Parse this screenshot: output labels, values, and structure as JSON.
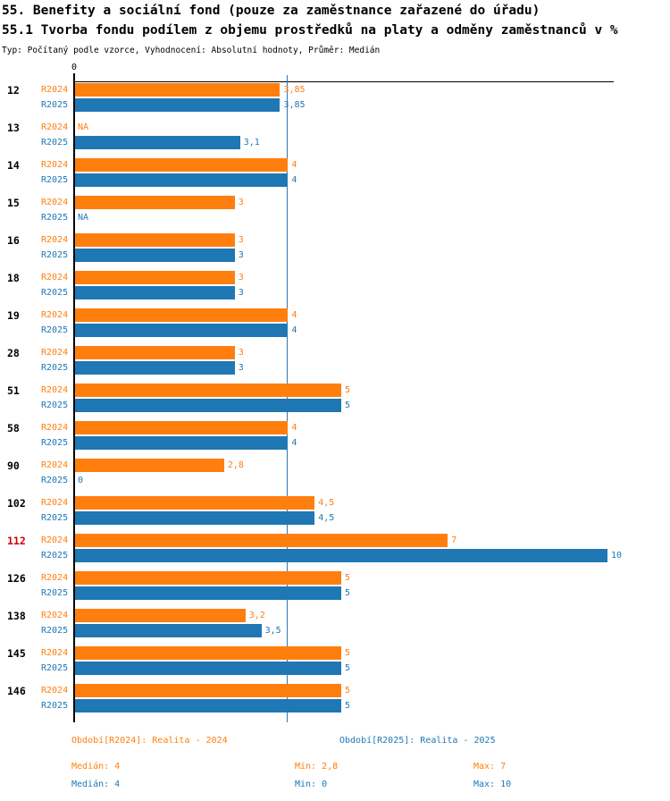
{
  "header": {
    "title_line1": "55. Benefity a sociální fond (pouze za zaměstnance zařazené do úřadu)",
    "title_line2": "55.1 Tvorba fondu podílem z objemu prostředků na platy a odměny zaměstnanců v %",
    "meta": "Typ: Počítaný podle vzorce, Vyhodnocení: Absolutní hodnoty, Průměr: Medián"
  },
  "chart_data": {
    "type": "bar",
    "orientation": "horizontal",
    "title": "55.1 Tvorba fondu podílem z objemu prostředků na platy a odměny zaměstnanců v %",
    "categories": [
      "12",
      "13",
      "14",
      "15",
      "16",
      "18",
      "19",
      "28",
      "51",
      "58",
      "90",
      "102",
      "112",
      "126",
      "138",
      "145",
      "146"
    ],
    "highlighted_category": "112",
    "highlight_color": "#CC0000",
    "na_label": "NA",
    "series": [
      {
        "name": "R2024",
        "color": "#FF7F0E",
        "values": [
          3.85,
          null,
          4,
          3,
          3,
          3,
          4,
          3,
          5,
          4,
          2.8,
          4.5,
          7,
          5,
          3.2,
          5,
          5
        ],
        "labels": [
          "3,85",
          "NA",
          "4",
          "3",
          "3",
          "3",
          "4",
          "3",
          "5",
          "4",
          "2,8",
          "4,5",
          "7",
          "5",
          "3,2",
          "5",
          "5"
        ]
      },
      {
        "name": "R2025",
        "color": "#1F77B4",
        "values": [
          3.85,
          3.1,
          4,
          null,
          3,
          3,
          4,
          3,
          5,
          4,
          0,
          4.5,
          10,
          5,
          3.5,
          5,
          5
        ],
        "labels": [
          "3,85",
          "3,1",
          "4",
          "NA",
          "3",
          "3",
          "4",
          "3",
          "5",
          "4",
          "0",
          "4,5",
          "10",
          "5",
          "3,5",
          "5",
          "5"
        ]
      }
    ],
    "xlim": [
      0,
      10
    ],
    "x_axis_tick_label": "0",
    "median_line_value": 4,
    "grid": false,
    "legend_position": "bottom"
  },
  "footer": {
    "legend": [
      {
        "label": "Období[R2024]: Realita - 2024",
        "color": "#FF7F0E"
      },
      {
        "label": "Období[R2025]: Realita - 2025",
        "color": "#1F77B4"
      }
    ],
    "stats": [
      {
        "median": "Medián: 4",
        "min": "Min: 2,8",
        "max": "Max: 7",
        "color": "#FF7F0E"
      },
      {
        "median": "Medián: 4",
        "min": "Min: 0",
        "max": "Max: 10",
        "color": "#1F77B4"
      }
    ]
  }
}
